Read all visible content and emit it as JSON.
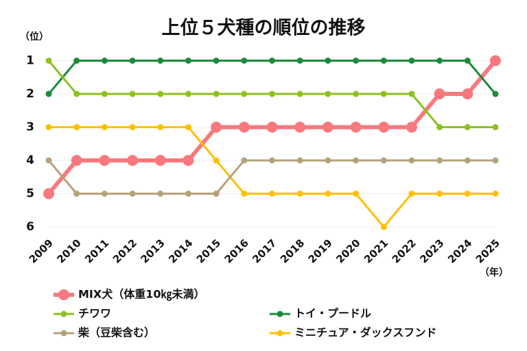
{
  "chart_data": {
    "type": "line",
    "title": "上位５犬種の順位の推移",
    "y_label": "（位）",
    "x_label": "（年）",
    "categories": [
      "2009",
      "2010",
      "2011",
      "2012",
      "2013",
      "2014",
      "2015",
      "2016",
      "2017",
      "2018",
      "2019",
      "2020",
      "2021",
      "2022",
      "2023",
      "2024",
      "2025"
    ],
    "ylim": [
      6,
      0
    ],
    "yticks": [
      1,
      2,
      3,
      4,
      5,
      6
    ],
    "grid": true,
    "series": [
      {
        "name": "MIX犬（体重10㎏未満）",
        "color": "#f7797d",
        "values": [
          5,
          4,
          4,
          4,
          4,
          4,
          3,
          3,
          3,
          3,
          3,
          3,
          3,
          3,
          2,
          2,
          1
        ]
      },
      {
        "name": "トイ・プードル",
        "color": "#1b8a3a",
        "values": [
          2,
          1,
          1,
          1,
          1,
          1,
          1,
          1,
          1,
          1,
          1,
          1,
          1,
          1,
          1,
          1,
          2
        ]
      },
      {
        "name": "チワワ",
        "color": "#8cc11f",
        "values": [
          1,
          2,
          2,
          2,
          2,
          2,
          2,
          2,
          2,
          2,
          2,
          2,
          2,
          2,
          3,
          3,
          3
        ]
      },
      {
        "name": "ミニチュア・ダックスフンド",
        "color": "#ffbf00",
        "values": [
          3,
          3,
          3,
          3,
          3,
          3,
          4,
          5,
          5,
          5,
          5,
          5,
          6,
          5,
          5,
          5,
          5
        ]
      },
      {
        "name": "柴（豆柴含む）",
        "color": "#b5a27a",
        "values": [
          4,
          5,
          5,
          5,
          5,
          5,
          5,
          4,
          4,
          4,
          4,
          4,
          4,
          4,
          4,
          4,
          4
        ]
      }
    ]
  }
}
